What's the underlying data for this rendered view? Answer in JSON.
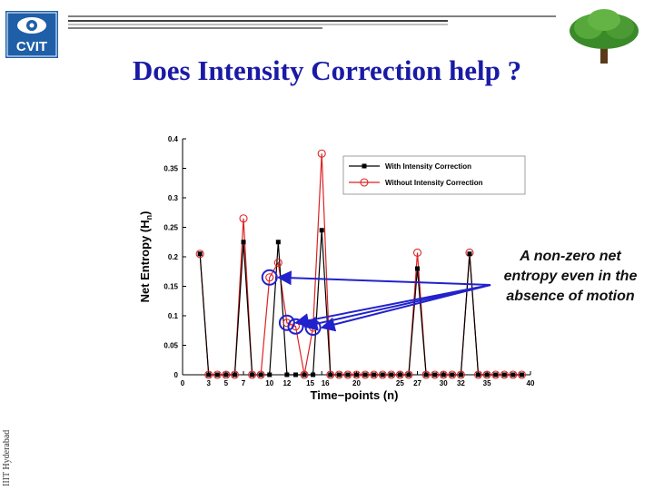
{
  "slide": {
    "title": "Does Intensity Correction help ?",
    "logo_text": "CVIT",
    "side_text": "IIIT Hyderabad",
    "annotation": "A non-zero net entropy even in the absence of motion"
  },
  "colors": {
    "title": "#1a1aa6",
    "with_series": "#000000",
    "without_series": "#dd2222",
    "arrow": "#2222cc"
  },
  "chart_data": {
    "type": "line",
    "xlabel": "Time−points (n)",
    "ylabel": "Net Entropy (H",
    "ylabel_sub": "n",
    "xlim": [
      0,
      40
    ],
    "ylim": [
      0,
      0.4
    ],
    "xticks": [
      0,
      3,
      5,
      7,
      10,
      12,
      15,
      16,
      20,
      25,
      27,
      30,
      32,
      35,
      40
    ],
    "xtick_labels": [
      "0",
      "3",
      "5",
      "7",
      "10",
      "12",
      "15",
      "16",
      "20",
      "25",
      "27",
      "30",
      "32",
      "35",
      "40"
    ],
    "yticks": [
      0,
      0.05,
      0.1,
      0.15,
      0.2,
      0.25,
      0.3,
      0.35,
      0.4
    ],
    "ytick_labels": [
      "0",
      "0.05",
      "0.1",
      "0.15",
      "0.2",
      "0.25",
      "0.3",
      "0.35",
      "0.4"
    ],
    "legend_position": "top-right",
    "x": [
      2,
      3,
      4,
      5,
      6,
      7,
      8,
      9,
      10,
      11,
      12,
      13,
      14,
      15,
      16,
      17,
      18,
      19,
      20,
      21,
      22,
      23,
      24,
      25,
      26,
      27,
      28,
      29,
      30,
      31,
      32,
      33,
      34,
      35,
      36,
      37,
      38,
      39
    ],
    "series": [
      {
        "name": "With Intensity Correction",
        "marker": "square",
        "values": [
          0.205,
          0,
          0,
          0,
          0,
          0.225,
          0,
          0,
          0,
          0.225,
          0,
          0,
          0,
          0,
          0.245,
          0,
          0,
          0,
          0,
          0,
          0,
          0,
          0,
          0,
          0,
          0.18,
          0,
          0,
          0,
          0,
          0,
          0.205,
          0,
          0,
          0,
          0,
          0,
          0
        ]
      },
      {
        "name": "Without Intensity Correction",
        "marker": "circle",
        "values": [
          0.205,
          0,
          0,
          0,
          0,
          0.265,
          0,
          0,
          0.165,
          0.19,
          0.088,
          0.082,
          0,
          0.08,
          0.375,
          0,
          0,
          0,
          0,
          0,
          0,
          0,
          0,
          0,
          0,
          0.207,
          0,
          0,
          0,
          0,
          0,
          0.207,
          0,
          0,
          0,
          0,
          0,
          0
        ]
      }
    ],
    "highlighted_points": [
      {
        "x": 10,
        "y": 0.165
      },
      {
        "x": 12,
        "y": 0.088
      },
      {
        "x": 13,
        "y": 0.082
      },
      {
        "x": 15,
        "y": 0.08
      }
    ]
  }
}
